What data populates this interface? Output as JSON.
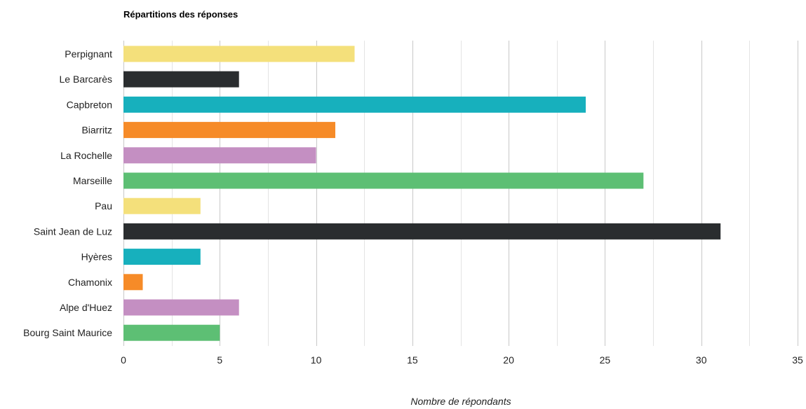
{
  "chart_data": {
    "type": "bar",
    "orientation": "horizontal",
    "title": "Répartitions des réponses",
    "xlabel": "Nombre de répondants",
    "ylabel": "",
    "xlim": [
      0,
      35
    ],
    "xticks": [
      0,
      5,
      10,
      15,
      20,
      25,
      30,
      35
    ],
    "grid": true,
    "legend": "none",
    "categories": [
      "Perpignant",
      "Le Barcarès",
      "Capbreton",
      "Biarritz",
      "La Rochelle",
      "Marseille",
      "Pau",
      "Saint Jean de Luz",
      "Hyères",
      "Chamonix",
      "Alpe d'Huez",
      "Bourg Saint Maurice"
    ],
    "values": [
      12,
      6,
      24,
      11,
      10,
      27,
      4,
      31,
      4,
      1,
      6,
      5
    ],
    "colors": [
      "#f4e07b",
      "#2a2d2f",
      "#17b0bd",
      "#f68b28",
      "#c48fc2",
      "#5dbf74",
      "#f4e07b",
      "#2a2d2f",
      "#17b0bd",
      "#f68b28",
      "#c48fc2",
      "#5dbf74"
    ]
  }
}
